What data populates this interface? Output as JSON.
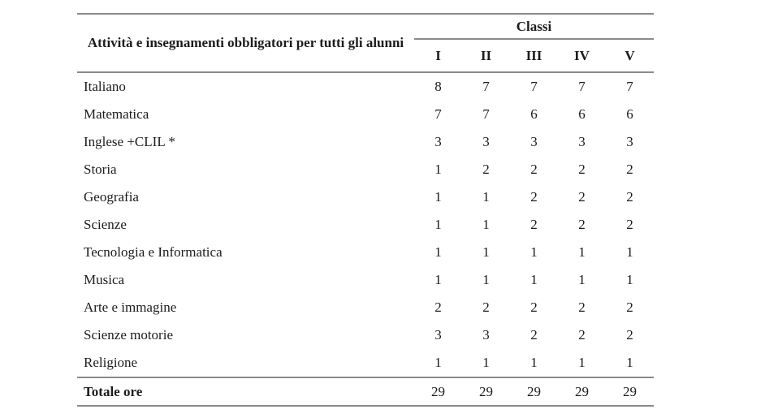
{
  "colors": {
    "line": "#8a8a8a",
    "text": "#1c1c1c",
    "background": "#ffffff"
  },
  "table": {
    "header": {
      "subject_label": "Attività e insegnamenti obbligatori per tutti gli alunni",
      "classes_label": "Classi",
      "class_columns": [
        "I",
        "II",
        "III",
        "IV",
        "V"
      ]
    },
    "rows": [
      {
        "subject": "Italiano",
        "values": [
          "8",
          "7",
          "7",
          "7",
          "7"
        ]
      },
      {
        "subject": "Matematica",
        "values": [
          "7",
          "7",
          "6",
          "6",
          "6"
        ]
      },
      {
        "subject": "Inglese +CLIL *",
        "values": [
          "3",
          "3",
          "3",
          "3",
          "3"
        ]
      },
      {
        "subject": "Storia",
        "values": [
          "1",
          "2",
          "2",
          "2",
          "2"
        ]
      },
      {
        "subject": "Geografia",
        "values": [
          "1",
          "1",
          "2",
          "2",
          "2"
        ]
      },
      {
        "subject": "Scienze",
        "values": [
          "1",
          "1",
          "2",
          "2",
          "2"
        ]
      },
      {
        "subject": "Tecnologia e Informatica",
        "values": [
          "1",
          "1",
          "1",
          "1",
          "1"
        ]
      },
      {
        "subject": "Musica",
        "values": [
          "1",
          "1",
          "1",
          "1",
          "1"
        ]
      },
      {
        "subject": "Arte e immagine",
        "values": [
          "2",
          "2",
          "2",
          "2",
          "2"
        ]
      },
      {
        "subject": "Scienze motorie",
        "values": [
          "3",
          "3",
          "2",
          "2",
          "2"
        ]
      },
      {
        "subject": "Religione",
        "values": [
          "1",
          "1",
          "1",
          "1",
          "1"
        ]
      }
    ],
    "total": {
      "label": "Totale ore",
      "values": [
        "29",
        "29",
        "29",
        "29",
        "29"
      ]
    }
  }
}
